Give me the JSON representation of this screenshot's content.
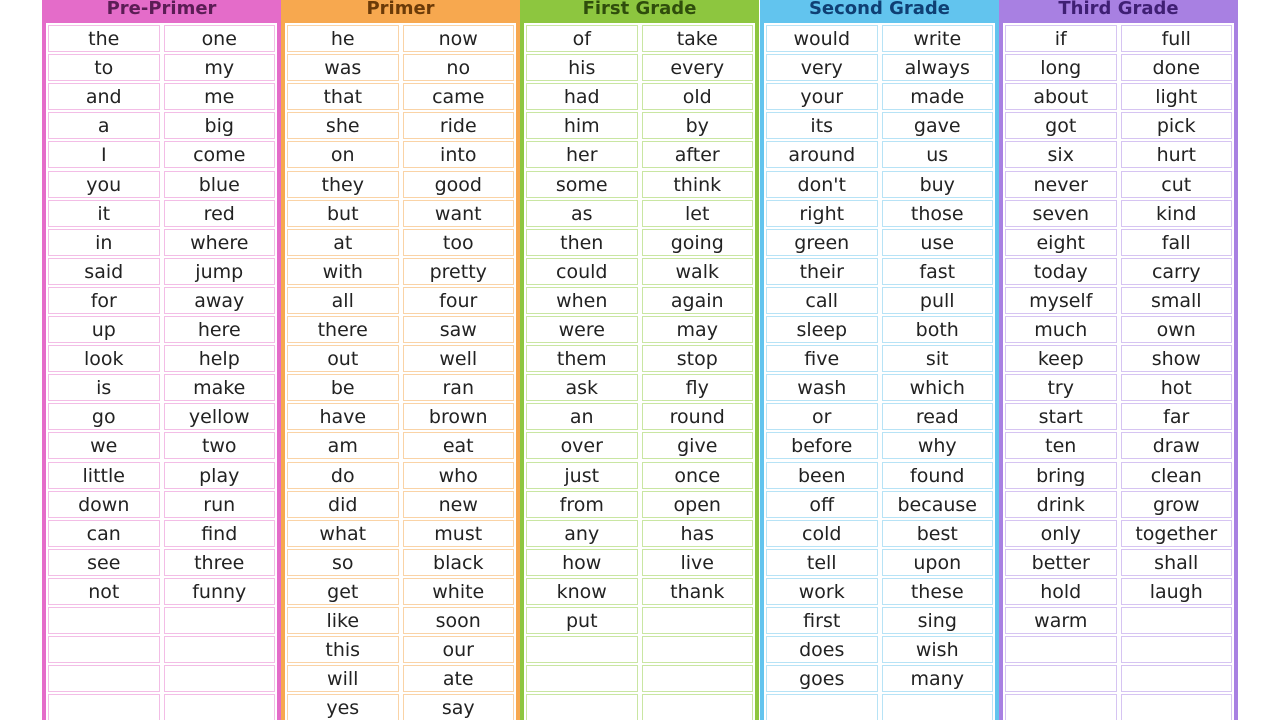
{
  "columns": [
    {
      "title": "Pre-Primer",
      "left": [
        "the",
        "to",
        "and",
        "a",
        "I",
        "you",
        "it",
        "in",
        "said",
        "for",
        "up",
        "look",
        "is",
        "go",
        "we",
        "little",
        "down",
        "can",
        "see",
        "not"
      ],
      "right": [
        "one",
        "my",
        "me",
        "big",
        "come",
        "blue",
        "red",
        "where",
        "jump",
        "away",
        "here",
        "help",
        "make",
        "yellow",
        "two",
        "play",
        "run",
        "find",
        "three",
        "funny"
      ]
    },
    {
      "title": "Primer",
      "left": [
        "he",
        "was",
        "that",
        "she",
        "on",
        "they",
        "but",
        "at",
        "with",
        "all",
        "there",
        "out",
        "be",
        "have",
        "am",
        "do",
        "did",
        "what",
        "so",
        "get",
        "like",
        "this",
        "will",
        "yes"
      ],
      "right": [
        "now",
        "no",
        "came",
        "ride",
        "into",
        "good",
        "want",
        "too",
        "pretty",
        "four",
        "saw",
        "well",
        "ran",
        "brown",
        "eat",
        "who",
        "new",
        "must",
        "black",
        "white",
        "soon",
        "our",
        "ate",
        "say"
      ]
    },
    {
      "title": "First Grade",
      "left": [
        "of",
        "his",
        "had",
        "him",
        "her",
        "some",
        "as",
        "then",
        "could",
        "when",
        "were",
        "them",
        "ask",
        "an",
        "over",
        "just",
        "from",
        "any",
        "how",
        "know",
        "put"
      ],
      "right": [
        "take",
        "every",
        "old",
        "by",
        "after",
        "think",
        "let",
        "going",
        "walk",
        "again",
        "may",
        "stop",
        "fly",
        "round",
        "give",
        "once",
        "open",
        "has",
        "live",
        "thank"
      ]
    },
    {
      "title": "Second Grade",
      "left": [
        "would",
        "very",
        "your",
        "its",
        "around",
        "don't",
        "right",
        "green",
        "their",
        "call",
        "sleep",
        "five",
        "wash",
        "or",
        "before",
        "been",
        "off",
        "cold",
        "tell",
        "work",
        "first",
        "does",
        "goes"
      ],
      "right": [
        "write",
        "always",
        "made",
        "gave",
        "us",
        "buy",
        "those",
        "use",
        "fast",
        "pull",
        "both",
        "sit",
        "which",
        "read",
        "why",
        "found",
        "because",
        "best",
        "upon",
        "these",
        "sing",
        "wish",
        "many"
      ]
    },
    {
      "title": "Third Grade",
      "left": [
        "if",
        "long",
        "about",
        "got",
        "six",
        "never",
        "seven",
        "eight",
        "today",
        "myself",
        "much",
        "keep",
        "try",
        "start",
        "ten",
        "bring",
        "drink",
        "only",
        "better",
        "hold",
        "warm"
      ],
      "right": [
        "full",
        "done",
        "light",
        "pick",
        "hurt",
        "cut",
        "kind",
        "fall",
        "carry",
        "small",
        "own",
        "show",
        "hot",
        "far",
        "draw",
        "clean",
        "grow",
        "together",
        "shall",
        "laugh"
      ]
    }
  ]
}
